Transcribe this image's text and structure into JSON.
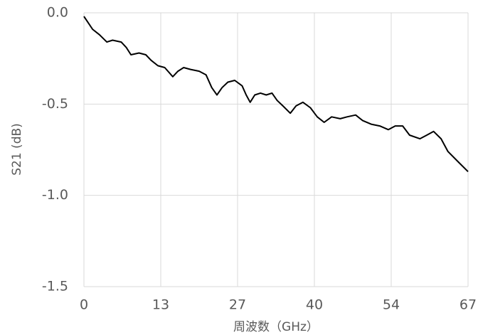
{
  "chart_data": {
    "type": "line",
    "x_label": "周波数（GHz）",
    "y_label": "S21 (dB)",
    "color": "#000000",
    "grid": true,
    "xlim": [
      0,
      67
    ],
    "xticks": [
      0,
      {
        "value": 13.4,
        "label": "13"
      },
      {
        "value": 26.8,
        "label": "27"
      },
      {
        "value": 40.2,
        "label": "40"
      },
      {
        "value": 53.6,
        "label": "54"
      },
      67
    ],
    "ylim": [
      -1.5,
      0
    ],
    "yticks": [
      {
        "value": 0,
        "label": "0.0"
      },
      -0.5,
      {
        "value": -1,
        "label": "-1.0"
      },
      -1.5
    ],
    "x": [
      0,
      1.5,
      2.7,
      4.0,
      5.0,
      6.5,
      7.4,
      8.2,
      9.6,
      10.8,
      11.7,
      12.9,
      14.1,
      15.5,
      16.4,
      17.4,
      18.6,
      20.1,
      21.3,
      22.3,
      23.2,
      24.1,
      25.1,
      26.3,
      27.6,
      28.3,
      29.0,
      29.8,
      30.8,
      31.8,
      32.8,
      33.7,
      34.7,
      36.0,
      37.0,
      38.2,
      39.5,
      40.7,
      41.9,
      43.2,
      44.7,
      45.9,
      47.4,
      48.6,
      50.1,
      51.6,
      53.1,
      54.3,
      55.6,
      56.8,
      58.6,
      59.8,
      61.0,
      62.3,
      63.5,
      65.4,
      67
    ],
    "values": [
      -0.02,
      -0.09,
      -0.12,
      -0.16,
      -0.15,
      -0.16,
      -0.19,
      -0.23,
      -0.22,
      -0.23,
      -0.26,
      -0.29,
      -0.3,
      -0.35,
      -0.32,
      -0.3,
      -0.31,
      -0.32,
      -0.34,
      -0.41,
      -0.45,
      -0.41,
      -0.38,
      -0.37,
      -0.4,
      -0.45,
      -0.49,
      -0.45,
      -0.44,
      -0.45,
      -0.44,
      -0.48,
      -0.51,
      -0.55,
      -0.51,
      -0.49,
      -0.52,
      -0.57,
      -0.6,
      -0.57,
      -0.58,
      -0.57,
      -0.56,
      -0.59,
      -0.61,
      -0.62,
      -0.64,
      -0.62,
      -0.62,
      -0.67,
      -0.69,
      -0.67,
      -0.65,
      -0.69,
      -0.76,
      -0.82,
      -0.87
    ]
  }
}
